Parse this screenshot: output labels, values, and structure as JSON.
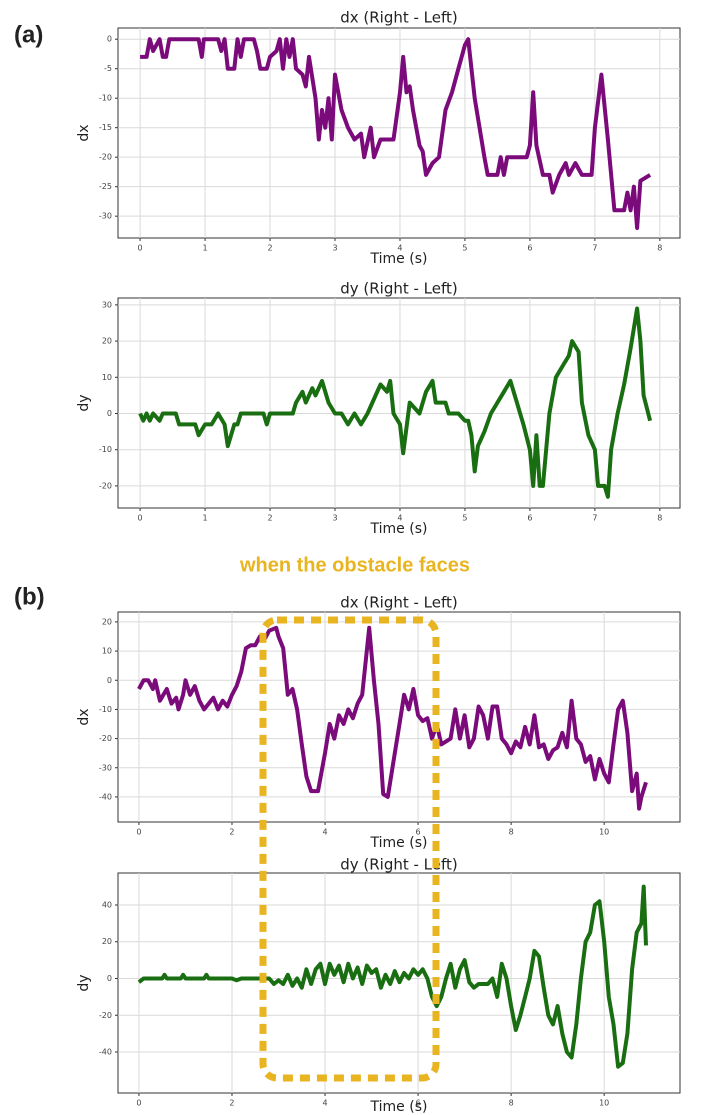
{
  "panel_labels": [
    "(a)",
    "(b)"
  ],
  "annotation": "when the obstacle faces",
  "chart_data": [
    {
      "type": "line",
      "title": "dx (Right - Left)",
      "xlabel": "Time (s)",
      "ylabel": "dx",
      "color": "#7b0a7b",
      "grid": true,
      "xlim": [
        -0.34,
        8.31
      ],
      "ylim": [
        -33.7,
        1.9
      ],
      "xticks": [
        0,
        1,
        2,
        3,
        4,
        5,
        6,
        7,
        8
      ],
      "yticks": [
        -30,
        -25,
        -20,
        -15,
        -10,
        -5,
        0
      ],
      "x": [
        0,
        0.1,
        0.15,
        0.2,
        0.3,
        0.35,
        0.4,
        0.45,
        0.9,
        0.95,
        0.98,
        1.2,
        1.25,
        1.3,
        1.35,
        1.45,
        1.5,
        1.55,
        1.6,
        1.75,
        1.8,
        1.85,
        1.95,
        2.0,
        2.1,
        2.15,
        2.2,
        2.25,
        2.3,
        2.35,
        2.4,
        2.5,
        2.55,
        2.6,
        2.7,
        2.75,
        2.8,
        2.85,
        2.9,
        2.95,
        3.0,
        3.1,
        3.2,
        3.3,
        3.4,
        3.45,
        3.55,
        3.6,
        3.7,
        3.9,
        4.0,
        4.05,
        4.1,
        4.15,
        4.2,
        4.3,
        4.35,
        4.4,
        4.5,
        4.6,
        4.7,
        4.8,
        4.9,
        5.0,
        5.05,
        5.15,
        5.3,
        5.35,
        5.5,
        5.55,
        5.6,
        5.65,
        5.75,
        5.85,
        5.95,
        6.0,
        6.05,
        6.1,
        6.2,
        6.3,
        6.35,
        6.45,
        6.55,
        6.6,
        6.7,
        6.8,
        6.95,
        7.0,
        7.1,
        7.2,
        7.3,
        7.45,
        7.5,
        7.55,
        7.6,
        7.65,
        7.7,
        7.85
      ],
      "values": [
        -3,
        -3,
        0,
        -2,
        0,
        -3,
        -3,
        0,
        0,
        -3,
        0,
        0,
        -2,
        0,
        -5,
        -5,
        0,
        -3,
        0,
        0,
        -2,
        -5,
        -5,
        -3,
        -2,
        0,
        -5,
        0,
        -3,
        0,
        -5,
        -6,
        -8,
        -3,
        -10,
        -17,
        -12,
        -15,
        -10,
        -17,
        -6,
        -12,
        -15,
        -17,
        -16,
        -20,
        -15,
        -20,
        -17,
        -17,
        -9,
        -3,
        -9,
        -8,
        -12,
        -18,
        -19,
        -23,
        -21,
        -20,
        -12,
        -9,
        -5,
        -1,
        0,
        -10,
        -20,
        -23,
        -23,
        -20,
        -23,
        -20,
        -20,
        -20,
        -20,
        -18,
        -9,
        -18,
        -23,
        -23,
        -26,
        -23,
        -21,
        -23,
        -21,
        -23,
        -23,
        -15,
        -6,
        -17,
        -29,
        -29,
        -26,
        -29,
        -25,
        -32,
        -24,
        -23
      ]
    },
    {
      "type": "line",
      "title": "dy (Right - Left)",
      "xlabel": "Time (s)",
      "ylabel": "dy",
      "color": "#1a6e12",
      "grid": true,
      "xlim": [
        -0.34,
        8.31
      ],
      "ylim": [
        -26.1,
        31.9
      ],
      "xticks": [
        0,
        1,
        2,
        3,
        4,
        5,
        6,
        7,
        8
      ],
      "yticks": [
        -20,
        -10,
        0,
        10,
        20,
        30
      ],
      "x": [
        0,
        0.05,
        0.1,
        0.15,
        0.2,
        0.3,
        0.35,
        0.55,
        0.6,
        0.85,
        0.9,
        1.0,
        1.1,
        1.2,
        1.3,
        1.35,
        1.45,
        1.5,
        1.55,
        1.9,
        1.95,
        2.0,
        2.35,
        2.4,
        2.5,
        2.55,
        2.65,
        2.7,
        2.8,
        2.9,
        3.0,
        3.1,
        3.2,
        3.3,
        3.4,
        3.5,
        3.6,
        3.7,
        3.8,
        3.85,
        3.9,
        4.0,
        4.05,
        4.15,
        4.3,
        4.4,
        4.5,
        4.55,
        4.7,
        4.75,
        4.9,
        5.0,
        5.05,
        5.1,
        5.15,
        5.2,
        5.3,
        5.4,
        5.5,
        5.6,
        5.7,
        5.8,
        5.9,
        6.0,
        6.05,
        6.1,
        6.15,
        6.2,
        6.3,
        6.4,
        6.5,
        6.6,
        6.65,
        6.75,
        6.8,
        6.9,
        7.0,
        7.05,
        7.15,
        7.2,
        7.25,
        7.35,
        7.45,
        7.55,
        7.65,
        7.7,
        7.75,
        7.85
      ],
      "values": [
        0,
        -2,
        0,
        -2,
        0,
        -2,
        0,
        0,
        -3,
        -3,
        -6,
        -3,
        -3,
        0,
        -3,
        -9,
        -3,
        -3,
        0,
        0,
        -3,
        0,
        0,
        3,
        6,
        3,
        7,
        5,
        9,
        3,
        0,
        0,
        -3,
        0,
        -3,
        0,
        4,
        8,
        6,
        9,
        0,
        -3,
        -11,
        3,
        0,
        6,
        9,
        3,
        3,
        0,
        0,
        -2,
        -2,
        -6,
        -16,
        -9,
        -5,
        0,
        3,
        6,
        9,
        3,
        -3,
        -10,
        -20,
        -6,
        -20,
        -20,
        0,
        10,
        13,
        16,
        20,
        17,
        3,
        -6,
        -10,
        -20,
        -20,
        -23,
        -10,
        0,
        8,
        18,
        29,
        20,
        5,
        -2
      ]
    },
    {
      "type": "line",
      "title": "dx (Right - Left)",
      "xlabel": "Time (s)",
      "ylabel": "dx",
      "color": "#7b0a7b",
      "grid": true,
      "xlim": [
        -0.45,
        11.63
      ],
      "ylim": [
        -48.6,
        23.4
      ],
      "xticks": [
        0,
        2,
        4,
        6,
        8,
        10
      ],
      "yticks": [
        -40,
        -30,
        -20,
        -10,
        0,
        10,
        20
      ],
      "x": [
        0,
        0.1,
        0.2,
        0.3,
        0.35,
        0.45,
        0.6,
        0.7,
        0.8,
        0.85,
        0.95,
        1.0,
        1.1,
        1.2,
        1.3,
        1.4,
        1.5,
        1.6,
        1.7,
        1.8,
        1.9,
        2.0,
        2.1,
        2.2,
        2.3,
        2.4,
        2.5,
        2.6,
        2.7,
        2.8,
        2.95,
        3.0,
        3.1,
        3.2,
        3.3,
        3.4,
        3.5,
        3.6,
        3.7,
        3.85,
        4.0,
        4.1,
        4.2,
        4.3,
        4.4,
        4.5,
        4.6,
        4.7,
        4.8,
        4.95,
        5.05,
        5.15,
        5.25,
        5.35,
        5.5,
        5.6,
        5.7,
        5.8,
        5.9,
        6.0,
        6.1,
        6.2,
        6.3,
        6.4,
        6.5,
        6.7,
        6.8,
        6.9,
        7.0,
        7.1,
        7.2,
        7.3,
        7.4,
        7.5,
        7.6,
        7.7,
        7.8,
        7.9,
        8.0,
        8.1,
        8.2,
        8.3,
        8.4,
        8.5,
        8.6,
        8.7,
        8.8,
        8.9,
        9.0,
        9.1,
        9.2,
        9.3,
        9.4,
        9.5,
        9.6,
        9.7,
        9.8,
        9.9,
        10.0,
        10.1,
        10.2,
        10.3,
        10.4,
        10.5,
        10.6,
        10.7,
        10.75,
        10.8,
        10.9
      ],
      "values": [
        -3,
        0,
        0,
        -3,
        0,
        -7,
        -3,
        -8,
        -6,
        -10,
        -5,
        0,
        -5,
        -2,
        -7,
        -10,
        -8,
        -6,
        -10,
        -7,
        -9,
        -5,
        -2,
        3,
        11,
        12,
        12,
        15,
        14,
        17,
        18,
        15,
        11,
        -5,
        -3,
        -10,
        -22,
        -33,
        -38,
        -38,
        -25,
        -15,
        -20,
        -12,
        -15,
        -10,
        -13,
        -8,
        -5,
        18,
        0,
        -15,
        -39,
        -40,
        -25,
        -15,
        -5,
        -10,
        -3,
        -12,
        -14,
        -13,
        -20,
        -15,
        -22,
        -20,
        -10,
        -20,
        -12,
        -23,
        -20,
        -9,
        -12,
        -20,
        -9,
        -9,
        -20,
        -22,
        -25,
        -21,
        -23,
        -16,
        -22,
        -12,
        -23,
        -22,
        -27,
        -24,
        -23,
        -18,
        -23,
        -7,
        -20,
        -22,
        -28,
        -26,
        -34,
        -27,
        -32,
        -35,
        -22,
        -10,
        -7,
        -18,
        -38,
        -32,
        -44,
        -40,
        -35
      ]
    },
    {
      "type": "line",
      "title": "dy (Right - Left)",
      "xlabel": "Time (s)",
      "ylabel": "dy",
      "color": "#1a6e12",
      "grid": true,
      "xlim": [
        -0.45,
        11.63
      ],
      "ylim": [
        -62.3,
        57.4
      ],
      "xticks": [
        0,
        2,
        4,
        6,
        8,
        10
      ],
      "yticks": [
        -40,
        -20,
        0,
        20,
        40
      ],
      "x": [
        0,
        0.1,
        0.5,
        0.55,
        0.6,
        0.9,
        0.95,
        1.0,
        1.4,
        1.45,
        1.5,
        2.0,
        2.1,
        2.2,
        2.8,
        2.9,
        3.0,
        3.1,
        3.2,
        3.3,
        3.4,
        3.5,
        3.6,
        3.7,
        3.8,
        3.9,
        4.0,
        4.1,
        4.2,
        4.3,
        4.4,
        4.5,
        4.6,
        4.7,
        4.8,
        4.9,
        5.0,
        5.1,
        5.2,
        5.3,
        5.4,
        5.5,
        5.6,
        5.7,
        5.8,
        5.9,
        6.0,
        6.1,
        6.2,
        6.3,
        6.4,
        6.5,
        6.6,
        6.7,
        6.8,
        6.9,
        7.0,
        7.1,
        7.2,
        7.3,
        7.5,
        7.6,
        7.7,
        7.8,
        7.9,
        8.0,
        8.1,
        8.2,
        8.3,
        8.4,
        8.5,
        8.6,
        8.7,
        8.8,
        8.9,
        9.0,
        9.1,
        9.2,
        9.3,
        9.4,
        9.5,
        9.6,
        9.7,
        9.8,
        9.9,
        10.0,
        10.1,
        10.2,
        10.3,
        10.4,
        10.5,
        10.6,
        10.7,
        10.8,
        10.85,
        10.9
      ],
      "values": [
        -2,
        0,
        0,
        2,
        0,
        0,
        2,
        0,
        0,
        2,
        0,
        0,
        -1,
        0,
        0,
        -3,
        -1,
        -3,
        2,
        -4,
        0,
        -5,
        5,
        -3,
        5,
        8,
        -3,
        8,
        2,
        7,
        -2,
        8,
        0,
        6,
        -3,
        7,
        3,
        5,
        -5,
        2,
        -3,
        4,
        -2,
        3,
        0,
        5,
        2,
        5,
        0,
        -10,
        -15,
        -10,
        0,
        8,
        -5,
        5,
        10,
        -2,
        -5,
        -3,
        -3,
        0,
        -10,
        8,
        0,
        -15,
        -28,
        -20,
        -10,
        0,
        15,
        12,
        -5,
        -20,
        -25,
        -15,
        -30,
        -40,
        -43,
        -25,
        0,
        20,
        25,
        40,
        42,
        20,
        -10,
        -25,
        -48,
        -46,
        -30,
        5,
        25,
        30,
        50,
        18
      ]
    }
  ]
}
